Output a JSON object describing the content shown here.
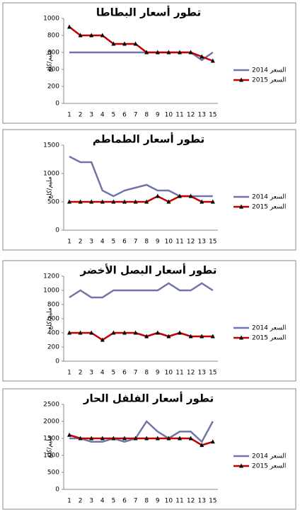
{
  "chart_data": [
    {
      "type": "line",
      "title": "تطور أسعار البطاطا",
      "ylabel": "مليم/كلغ",
      "categories": [
        "1",
        "2",
        "3",
        "4",
        "5",
        "6",
        "7",
        "8",
        "9",
        "10",
        "11",
        "12",
        "13",
        "15"
      ],
      "ylim": [
        0,
        1000
      ],
      "yticks": [
        0,
        200,
        400,
        600,
        800,
        1000
      ],
      "series": [
        {
          "name": "السعر 2014",
          "color": "#7075a8",
          "marker": "none",
          "values": [
            600,
            600,
            600,
            600,
            600,
            600,
            600,
            600,
            600,
            600,
            600,
            600,
            510,
            600
          ]
        },
        {
          "name": "السعر 2015",
          "color": "#c00000",
          "marker": "triangle",
          "values": [
            900,
            800,
            800,
            800,
            700,
            700,
            700,
            600,
            600,
            600,
            600,
            600,
            550,
            500
          ]
        }
      ]
    },
    {
      "type": "line",
      "title": "تطور أسعار الطماطم",
      "ylabel": "مليم/كلغ",
      "categories": [
        "1",
        "2",
        "3",
        "4",
        "5",
        "6",
        "7",
        "8",
        "9",
        "10",
        "11",
        "12",
        "13",
        "15"
      ],
      "ylim": [
        0,
        1500
      ],
      "yticks": [
        0,
        500,
        1000,
        1500
      ],
      "series": [
        {
          "name": "السعر 2014",
          "color": "#7075a8",
          "marker": "none",
          "values": [
            1300,
            1200,
            1200,
            700,
            600,
            700,
            750,
            800,
            700,
            700,
            600,
            600,
            600,
            600
          ]
        },
        {
          "name": "السعر 2015",
          "color": "#c00000",
          "marker": "triangle",
          "values": [
            500,
            500,
            500,
            500,
            500,
            500,
            500,
            500,
            600,
            500,
            600,
            600,
            500,
            500
          ]
        }
      ]
    },
    {
      "type": "line",
      "title": "تطور أسعار البصل الأخضر",
      "ylabel": "مليم/كلغ",
      "categories": [
        "1",
        "2",
        "3",
        "4",
        "5",
        "6",
        "7",
        "8",
        "9",
        "10",
        "11",
        "12",
        "13",
        "15"
      ],
      "ylim": [
        0,
        1200
      ],
      "yticks": [
        0,
        200,
        400,
        600,
        800,
        1000,
        1200
      ],
      "series": [
        {
          "name": "السعر 2014",
          "color": "#7075a8",
          "marker": "none",
          "values": [
            900,
            1000,
            900,
            900,
            1000,
            1000,
            1000,
            1000,
            1000,
            1100,
            1000,
            1000,
            1100,
            1000
          ]
        },
        {
          "name": "السعر 2015",
          "color": "#c00000",
          "marker": "triangle",
          "values": [
            400,
            400,
            400,
            300,
            400,
            400,
            400,
            350,
            400,
            350,
            400,
            350,
            350,
            350
          ]
        }
      ]
    },
    {
      "type": "line",
      "title": "تطور أسعار الفلفل الحار",
      "ylabel": "مليم/كلغ",
      "categories": [
        "1",
        "2",
        "3",
        "4",
        "5",
        "6",
        "7",
        "8",
        "9",
        "10",
        "11",
        "12",
        "13",
        "15"
      ],
      "ylim": [
        0,
        2500
      ],
      "yticks": [
        0,
        500,
        1000,
        1500,
        2000,
        2500
      ],
      "series": [
        {
          "name": "السعر 2014",
          "color": "#7075a8",
          "marker": "none",
          "values": [
            1500,
            1500,
            1400,
            1400,
            1500,
            1400,
            1500,
            2000,
            1700,
            1500,
            1700,
            1700,
            1400,
            2000
          ]
        },
        {
          "name": "السعر 2015",
          "color": "#c00000",
          "marker": "triangle",
          "values": [
            1600,
            1500,
            1500,
            1500,
            1500,
            1500,
            1500,
            1500,
            1500,
            1500,
            1500,
            1500,
            1300,
            1400
          ]
        }
      ]
    }
  ]
}
